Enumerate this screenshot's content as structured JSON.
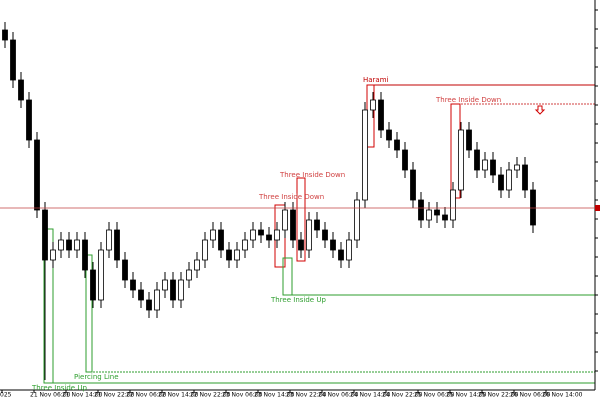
{
  "chart_data": {
    "type": "candlestick",
    "ylim": [
      0,
      390
    ],
    "open": [
      360,
      350,
      310,
      290,
      250,
      180,
      130,
      140,
      150,
      140,
      150,
      120,
      90,
      140,
      160,
      130,
      110,
      100,
      90,
      80,
      100,
      110,
      90,
      110,
      120,
      130,
      150,
      160,
      140,
      130,
      140,
      150,
      160,
      155,
      150,
      160,
      180,
      150,
      140,
      170,
      160,
      150,
      140,
      130,
      150,
      190,
      280,
      290,
      260,
      250,
      240,
      220,
      190,
      170,
      180,
      175,
      170,
      200,
      260,
      240,
      220,
      230,
      215,
      200,
      220,
      225,
      200
    ],
    "high": [
      368,
      358,
      318,
      298,
      258,
      188,
      148,
      158,
      158,
      158,
      158,
      128,
      148,
      168,
      168,
      138,
      118,
      108,
      98,
      108,
      118,
      118,
      118,
      128,
      138,
      158,
      168,
      168,
      148,
      148,
      158,
      168,
      168,
      163,
      168,
      188,
      188,
      158,
      178,
      178,
      168,
      158,
      148,
      158,
      198,
      288,
      298,
      298,
      268,
      258,
      248,
      228,
      198,
      188,
      188,
      183,
      208,
      268,
      268,
      248,
      238,
      238,
      223,
      228,
      233,
      233,
      208
    ],
    "low": [
      342,
      302,
      282,
      242,
      172,
      10,
      122,
      132,
      132,
      132,
      112,
      82,
      82,
      132,
      122,
      102,
      92,
      82,
      72,
      72,
      92,
      82,
      82,
      102,
      112,
      122,
      142,
      132,
      122,
      122,
      132,
      142,
      147,
      142,
      142,
      152,
      142,
      132,
      132,
      152,
      142,
      132,
      122,
      122,
      142,
      182,
      272,
      252,
      242,
      232,
      212,
      182,
      162,
      162,
      167,
      162,
      162,
      192,
      232,
      212,
      212,
      207,
      192,
      192,
      212,
      192,
      157
    ],
    "close": [
      350,
      310,
      290,
      250,
      180,
      130,
      140,
      150,
      140,
      150,
      120,
      90,
      140,
      160,
      130,
      110,
      100,
      90,
      80,
      100,
      110,
      90,
      110,
      120,
      130,
      150,
      160,
      140,
      130,
      140,
      150,
      160,
      155,
      150,
      160,
      180,
      150,
      140,
      170,
      160,
      150,
      140,
      130,
      150,
      190,
      280,
      290,
      260,
      250,
      240,
      220,
      190,
      170,
      180,
      175,
      170,
      200,
      260,
      240,
      220,
      230,
      215,
      200,
      220,
      225,
      200,
      165
    ],
    "current_price": 182,
    "xtick_labels": [
      "025",
      "21 Nov 06:00",
      "21 Nov 14:00",
      "21 Nov 22:00",
      "22 Nov 06:00",
      "22 Nov 14:00",
      "22 Nov 22:00",
      "23 Nov 06:00",
      "23 Nov 14:00",
      "23 Nov 22:00",
      "24 Nov 06:00",
      "24 Nov 14:00",
      "24 Nov 22:00",
      "25 Nov 06:00",
      "25 Nov 14:00",
      "25 Nov 22:00",
      "26 Nov 06:00",
      "26 Nov 14:00"
    ],
    "annotations": [
      "Harami",
      "Three Inside Down",
      "Three Inside Down",
      "Three Inside Down",
      "Three Inside Up",
      "Piercing Line",
      "Three Inside Up"
    ]
  }
}
